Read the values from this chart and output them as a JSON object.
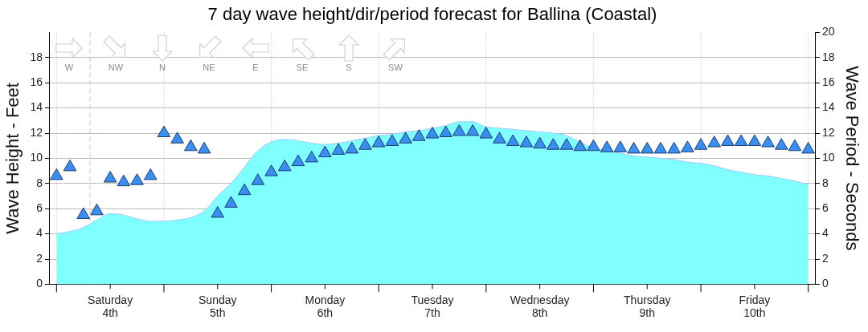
{
  "chart_data": {
    "type": "area",
    "title": "7 day wave height/dir/period forecast for Ballina (Coastal)",
    "ylabel": "Wave Height - Feet",
    "y2label": "Wave Period - Seconds",
    "annotations": [
      "W",
      "NW",
      "N",
      "NE",
      "E",
      "SE",
      "S",
      "SW"
    ],
    "categories": [
      null,
      null,
      null,
      null,
      "Saturday 4th",
      null,
      null,
      null,
      null,
      null,
      null,
      null,
      "Sunday 5th",
      null,
      null,
      null,
      null,
      null,
      null,
      null,
      "Monday 6th",
      null,
      null,
      null,
      null,
      null,
      null,
      null,
      "Tuesday 7th",
      null,
      null,
      null,
      null,
      null,
      null,
      null,
      "Wednesday 8th",
      null,
      null,
      null,
      null,
      null,
      null,
      null,
      "Thursday 9th",
      null,
      null,
      null,
      null,
      null,
      null,
      null,
      "Friday 10th",
      null,
      null,
      null,
      null
    ],
    "ylim": [
      0,
      20
    ],
    "yticks": [
      0,
      2,
      4,
      6,
      8,
      10,
      12,
      14,
      16,
      18
    ],
    "y2lim": [
      0,
      20
    ],
    "y2ticks": [
      0,
      2,
      4,
      6,
      8,
      10,
      12,
      14,
      16,
      18,
      20
    ],
    "grid": true,
    "series": [
      {
        "color": "#80ffff",
        "values": [
          4.0,
          4.2,
          4.5,
          5.1,
          5.6,
          5.5,
          5.2,
          5.0,
          5.0,
          5.1,
          5.3,
          5.8,
          7.0,
          8.0,
          9.3,
          10.6,
          11.3,
          11.5,
          11.4,
          11.2,
          11.1,
          11.2,
          11.4,
          11.6,
          11.8,
          11.9,
          12.1,
          12.2,
          12.4,
          12.6,
          12.9,
          12.9,
          12.5,
          12.4,
          12.3,
          12.2,
          12.1,
          12.0,
          11.8,
          11.3,
          10.8,
          10.6,
          10.4,
          10.2,
          10.1,
          10.0,
          9.9,
          9.7,
          9.6,
          9.4,
          9.1,
          8.9,
          8.7,
          8.6,
          8.4,
          8.2,
          7.9
        ]
      },
      {
        "type": "scatter",
        "axis": "y2",
        "color": "#3a8ef0",
        "marker": "triangle",
        "values": [
          8.6,
          9.3,
          5.5,
          5.8,
          8.4,
          8.1,
          8.2,
          8.6,
          12.0,
          11.5,
          10.9,
          10.7,
          5.6,
          6.4,
          7.4,
          8.2,
          8.9,
          9.3,
          9.7,
          10.0,
          10.4,
          10.6,
          10.7,
          11.0,
          11.2,
          11.3,
          11.5,
          11.7,
          11.9,
          12.0,
          12.1,
          12.1,
          11.9,
          11.5,
          11.3,
          11.2,
          11.1,
          11.0,
          11.0,
          10.9,
          10.9,
          10.8,
          10.8,
          10.7,
          10.7,
          10.7,
          10.7,
          10.8,
          11.0,
          11.2,
          11.3,
          11.3,
          11.3,
          11.2,
          11.0,
          10.9,
          10.7
        ]
      }
    ]
  }
}
